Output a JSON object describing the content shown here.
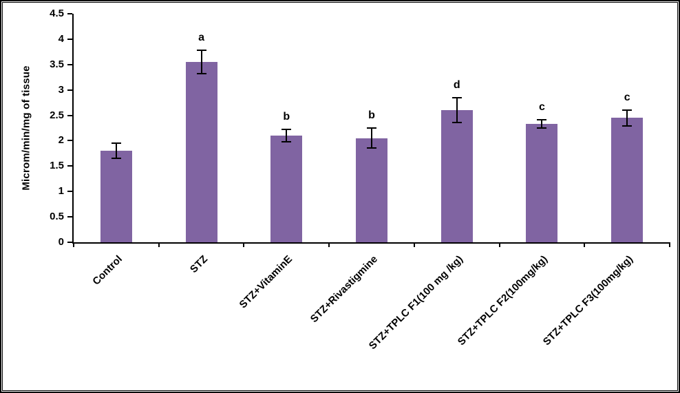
{
  "figure": {
    "background": "#ffffff",
    "border_color": "#000000"
  },
  "chart_data": {
    "type": "bar",
    "title": "",
    "xlabel": "",
    "ylabel": "Microm/min/mg of tissue",
    "ylim": [
      0,
      4.5
    ],
    "ytick_step": 0.5,
    "yticks": [
      0,
      0.5,
      1,
      1.5,
      2,
      2.5,
      3,
      3.5,
      4,
      4.5
    ],
    "ytick_labels": [
      "0",
      "0.5",
      "1",
      "1.5",
      "2",
      "2.5",
      "3",
      "3.5",
      "4",
      "4.5"
    ],
    "grid": false,
    "legend_position": "none",
    "bar_color": "#8064A2",
    "error_bar_color": "#000000",
    "categories": [
      "Control",
      "STZ",
      "STZ+VitaminE",
      "STZ+Rivastigmine",
      "STZ+TPLC F1(100 mg /kg)",
      "STZ+TPLC F2(100mg/kg)",
      "STZ+TPLC F3(100mg/kg)"
    ],
    "values": [
      1.8,
      3.55,
      2.1,
      2.05,
      2.6,
      2.33,
      2.45
    ],
    "errors": [
      0.16,
      0.24,
      0.13,
      0.21,
      0.26,
      0.1,
      0.17
    ],
    "significance_letters": [
      "",
      "a",
      "b",
      "b",
      "d",
      "c",
      "c"
    ]
  }
}
